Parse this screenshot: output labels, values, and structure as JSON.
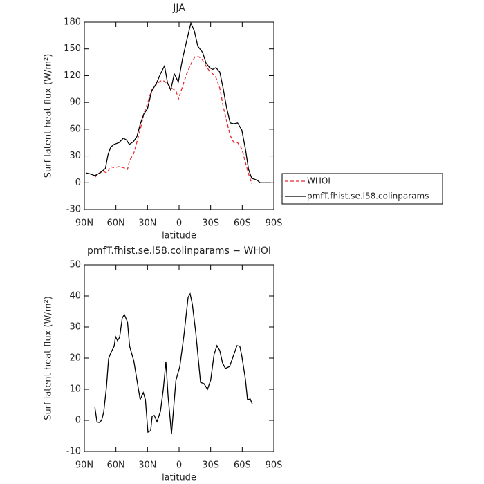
{
  "chart_data": [
    {
      "type": "line",
      "title": "JJA",
      "xlabel": "latitude",
      "ylabel": "Surf latent heat flux (W/m²)",
      "xlim": [
        90,
        -90
      ],
      "xticks": [
        {
          "value": 90,
          "label": "90N"
        },
        {
          "value": 60,
          "label": "60N"
        },
        {
          "value": 30,
          "label": "30N"
        },
        0,
        {
          "value": -30,
          "label": "30S"
        },
        {
          "value": -60,
          "label": "60S"
        },
        {
          "value": -90,
          "label": "90S"
        }
      ],
      "ylim": [
        -30,
        180
      ],
      "yticks": [
        -30,
        0,
        30,
        60,
        90,
        120,
        150,
        180
      ],
      "legend": "right",
      "series": [
        {
          "name": "WHOI",
          "color": "#e8262b",
          "dash": true,
          "x": [
            80,
            77,
            73,
            68.5,
            65,
            62,
            57,
            53,
            49,
            47,
            43,
            40,
            37,
            33.5,
            30,
            26,
            21.7,
            17.7,
            14.4,
            11,
            7,
            3,
            0.5,
            -3.3,
            -7.2,
            -11.2,
            -15,
            -19,
            -22,
            -26,
            -29,
            -32,
            -35,
            -38.7,
            -42,
            -45,
            -48.6,
            -52,
            -55.6,
            -59.6,
            -63,
            -66,
            -69
          ],
          "values": [
            6,
            10,
            13,
            11,
            18,
            17,
            18,
            17,
            15,
            25,
            33,
            46,
            59,
            77,
            89,
            104,
            110,
            114,
            114,
            111,
            106,
            103,
            94,
            108,
            122,
            133,
            141,
            141,
            138,
            130,
            125,
            122,
            118,
            106,
            85,
            70,
            53,
            45,
            45,
            38,
            23,
            10,
            -1
          ]
        },
        {
          "name": "pmfT.fhist.se.l58.colinparams",
          "color": "#000000",
          "dash": false,
          "x": [
            88.7,
            84.7,
            80,
            75,
            70,
            67.6,
            65,
            61.7,
            57,
            53,
            50,
            47.3,
            43.4,
            40,
            36.8,
            33.5,
            30,
            26,
            21.7,
            17.7,
            13.8,
            11,
            7.9,
            4.6,
            0.7,
            -3.3,
            -7.2,
            -11.2,
            -14.5,
            -17.8,
            -22.4,
            -25.6,
            -29,
            -32,
            -35,
            -38.7,
            -42,
            -45,
            -48.6,
            -52,
            -55.6,
            -59.6,
            -63,
            -66,
            -69,
            -74,
            -77,
            -82,
            -87
          ],
          "values": [
            11,
            10,
            8,
            11,
            16,
            31,
            40,
            43,
            45,
            50,
            48,
            43,
            46,
            52,
            66,
            77,
            83,
            103,
            111,
            122,
            131,
            112,
            104,
            122,
            113,
            139,
            159,
            179,
            170,
            153,
            146,
            134,
            129,
            127,
            129,
            124,
            105,
            85,
            67,
            66,
            67,
            59,
            38,
            15,
            5,
            3,
            0,
            0,
            0
          ]
        }
      ]
    },
    {
      "type": "line",
      "title": "pmfT.fhist.se.l58.colinparams − WHOI",
      "xlabel": "latitude",
      "ylabel": "Surf latent heat flux (W/m²)",
      "xlim": [
        90,
        -90
      ],
      "xticks": [
        {
          "value": 90,
          "label": "90N"
        },
        {
          "value": 60,
          "label": "60N"
        },
        {
          "value": 30,
          "label": "30N"
        },
        0,
        {
          "value": -30,
          "label": "30S"
        },
        {
          "value": -60,
          "label": "60S"
        },
        {
          "value": -90,
          "label": "90S"
        }
      ],
      "ylim": [
        -10,
        50
      ],
      "yticks": [
        -10,
        0,
        10,
        20,
        30,
        40,
        50
      ],
      "series": [
        {
          "color": "#000000",
          "dash": false,
          "x": [
            80,
            78,
            76,
            73.6,
            71.6,
            69,
            67,
            65,
            61.7,
            60.4,
            58.5,
            56.5,
            54,
            52,
            49,
            47,
            43,
            40,
            37,
            34,
            32,
            29.6,
            27,
            25.6,
            23.6,
            21,
            17.7,
            15,
            12.5,
            10.5,
            7.2,
            3,
            -0.7,
            -4.6,
            -8.6,
            -10.5,
            -12.6,
            -15.8,
            -20.4,
            -23.6,
            -27,
            -30,
            -33.3,
            -36,
            -38.7,
            -41.3,
            -44,
            -48,
            -51,
            -55,
            -57.7,
            -59.6,
            -63,
            -65,
            -67.6,
            -69.5
          ],
          "values": [
            4.2,
            -0.5,
            -0.7,
            0,
            2.7,
            10.7,
            19.8,
            21.6,
            23.8,
            26.9,
            25.6,
            26.7,
            32.9,
            34,
            31.6,
            23.8,
            19.1,
            12.9,
            6.7,
            8.9,
            6.7,
            -3.8,
            -3.3,
            1.3,
            1.6,
            -0.4,
            2.9,
            10,
            18.9,
            8,
            -4.4,
            12.9,
            17.3,
            27.3,
            39.6,
            40.7,
            37.3,
            28.4,
            12.2,
            11.8,
            10,
            12.9,
            21.3,
            24,
            22.4,
            18.4,
            16.7,
            17.3,
            20.2,
            24,
            23.8,
            20.7,
            13.3,
            6.7,
            6.9,
            5.3
          ]
        }
      ]
    }
  ]
}
